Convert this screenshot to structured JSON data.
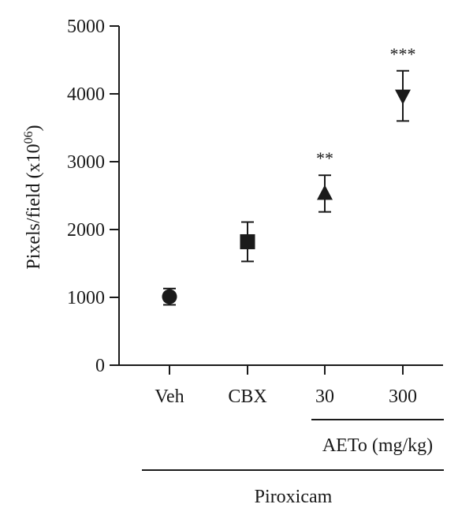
{
  "chart_data": {
    "type": "scatter",
    "ylabel": "Pixels/field (x10",
    "ylabel_exponent": "06",
    "ylabel_close": ")",
    "ylim": [
      0,
      5000
    ],
    "yticks": [
      "0",
      "1000",
      "2000",
      "3000",
      "4000",
      "5000"
    ],
    "categories": [
      "Veh",
      "CBX",
      "30",
      "300"
    ],
    "points": [
      {
        "category": "Veh",
        "value": 1010,
        "error": 120,
        "marker": "circle",
        "significance": ""
      },
      {
        "category": "CBX",
        "value": 1820,
        "error": 290,
        "marker": "square",
        "significance": ""
      },
      {
        "category": "30",
        "value": 2530,
        "error": 270,
        "marker": "triangle-up",
        "significance": "**"
      },
      {
        "category": "300",
        "value": 3970,
        "error": 370,
        "marker": "triangle-down",
        "significance": "***"
      }
    ],
    "group_labels": {
      "dose_group": "AETo (mg/kg)",
      "treatment_group": "Piroxicam"
    },
    "colors": {
      "ink": "#1a1a1a"
    }
  }
}
